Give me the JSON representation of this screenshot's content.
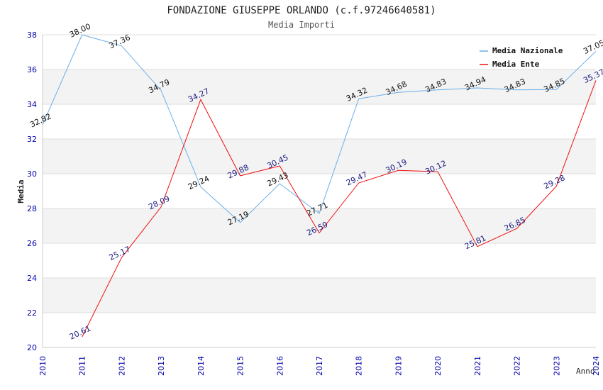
{
  "chart_data": {
    "type": "line",
    "title": "FONDAZIONE GIUSEPPE ORLANDO (c.f.97246640581)",
    "subtitle": "Media Importi",
    "xlabel": "Anno",
    "ylabel": "Media",
    "x": [
      "2010",
      "2011",
      "2012",
      "2013",
      "2014",
      "2015",
      "2016",
      "2017",
      "2018",
      "2019",
      "2020",
      "2021",
      "2022",
      "2023",
      "2024"
    ],
    "ylim": [
      20,
      38
    ],
    "yticks": [
      "20",
      "22",
      "24",
      "26",
      "28",
      "30",
      "32",
      "34",
      "36",
      "38"
    ],
    "grid": true,
    "legend_position": "top-right",
    "series": [
      {
        "name": "Media Nazionale",
        "color": "#6aaee8",
        "label_color": "#111111",
        "values": [
          32.82,
          38.0,
          37.36,
          34.79,
          29.24,
          27.19,
          29.43,
          27.71,
          34.32,
          34.68,
          34.83,
          34.94,
          34.83,
          34.85,
          37.05
        ],
        "labels": [
          "32.82",
          "38.00",
          "37.36",
          "34.79",
          "29.24",
          "27.19",
          "29.43",
          "27.71",
          "34.32",
          "34.68",
          "34.83",
          "34.94",
          "34.83",
          "34.85",
          "37.05"
        ]
      },
      {
        "name": "Media Ente",
        "color": "#ee1111",
        "label_color": "#1a1a80",
        "values": [
          null,
          20.61,
          25.17,
          28.09,
          34.27,
          29.88,
          30.45,
          26.59,
          29.47,
          30.19,
          30.12,
          25.81,
          26.85,
          29.28,
          35.37
        ],
        "labels": [
          "",
          "20.61",
          "25.17",
          "28.09",
          "34.27",
          "29.88",
          "30.45",
          "26.59",
          "29.47",
          "30.19",
          "30.12",
          "25.81",
          "26.85",
          "29.28",
          "35.37"
        ]
      }
    ]
  }
}
